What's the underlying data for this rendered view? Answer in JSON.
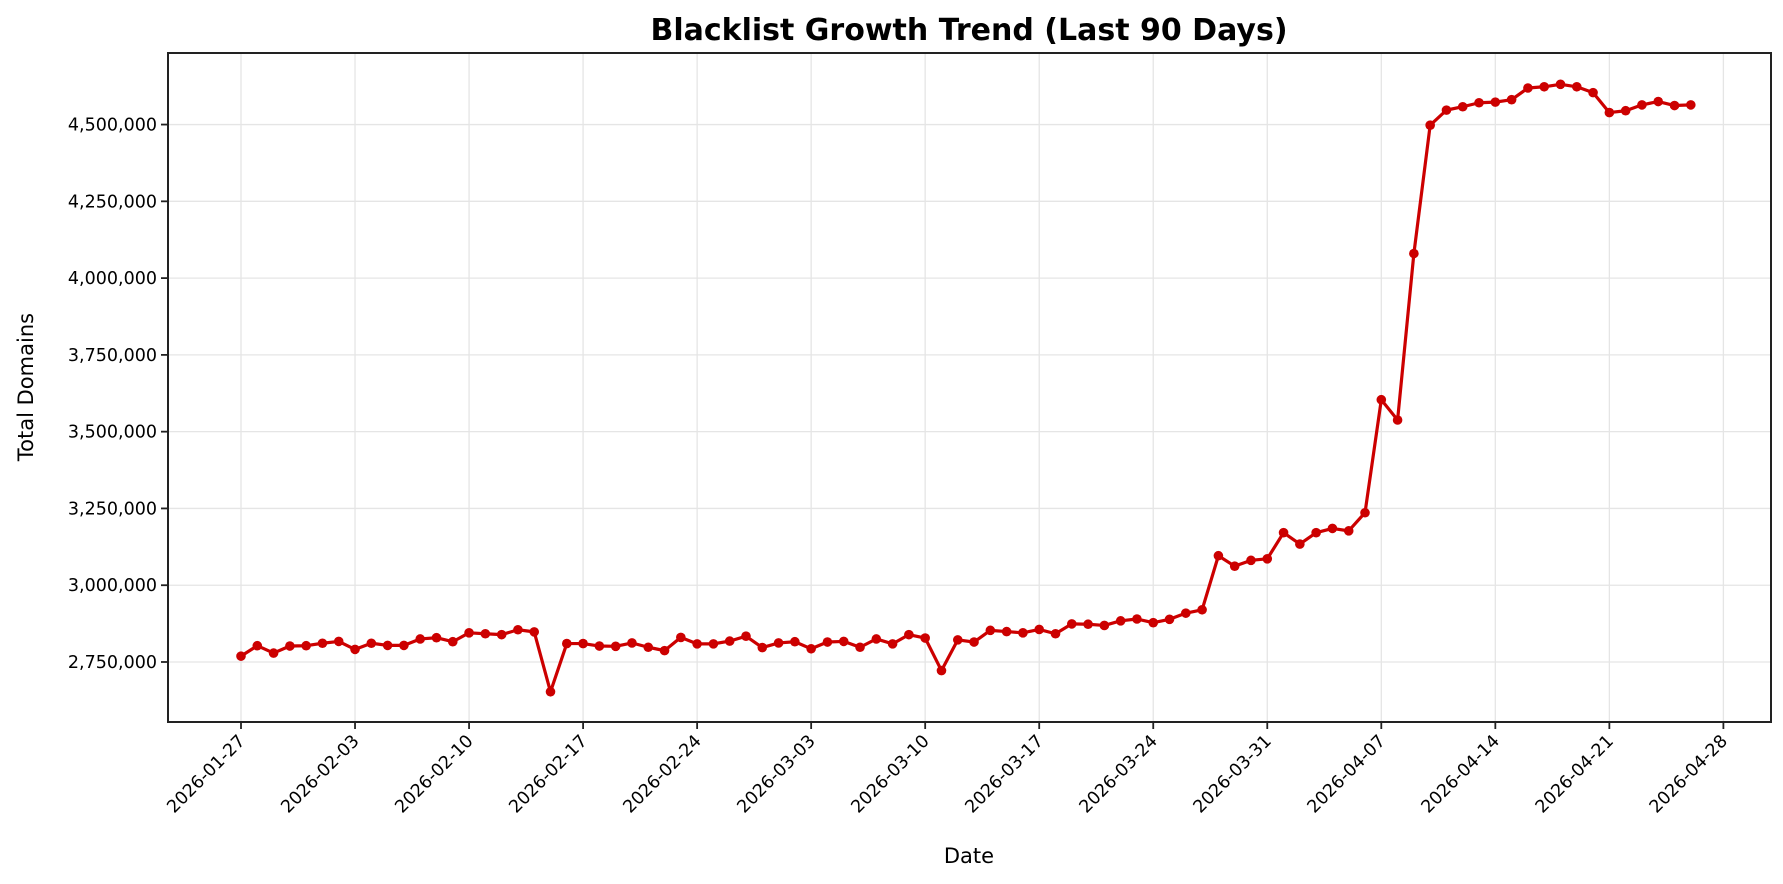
{
  "chart_data": {
    "type": "line",
    "title": "Blacklist Growth Trend (Last 90 Days)",
    "xlabel": "Date",
    "ylabel": "Total Domains",
    "grid": true,
    "legend": null,
    "line_color": "#cc0000",
    "marker": "circle",
    "ylim": [
      2554600,
      4733000
    ],
    "xlim": [
      "2026-01-22",
      "2026-04-30"
    ],
    "y_ticks": [
      2750000,
      3000000,
      3250000,
      3500000,
      3750000,
      4000000,
      4250000,
      4500000
    ],
    "y_tick_labels": [
      "2,750,000",
      "3,000,000",
      "3,250,000",
      "3,500,000",
      "3,750,000",
      "4,000,000",
      "4,250,000",
      "4,500,000"
    ],
    "x_tick_labels": [
      "2026-01-27",
      "2026-02-03",
      "2026-02-10",
      "2026-02-17",
      "2026-02-24",
      "2026-03-03",
      "2026-03-10",
      "2026-03-17",
      "2026-03-24",
      "2026-03-31",
      "2026-04-07",
      "2026-04-14",
      "2026-04-21",
      "2026-04-28"
    ],
    "x": [
      "2026-01-27",
      "2026-01-28",
      "2026-01-29",
      "2026-01-30",
      "2026-01-31",
      "2026-02-01",
      "2026-02-02",
      "2026-02-03",
      "2026-02-04",
      "2026-02-05",
      "2026-02-06",
      "2026-02-07",
      "2026-02-08",
      "2026-02-09",
      "2026-02-10",
      "2026-02-11",
      "2026-02-12",
      "2026-02-13",
      "2026-02-14",
      "2026-02-15",
      "2026-02-16",
      "2026-02-17",
      "2026-02-18",
      "2026-02-19",
      "2026-02-20",
      "2026-02-21",
      "2026-02-22",
      "2026-02-23",
      "2026-02-24",
      "2026-02-25",
      "2026-02-26",
      "2026-02-27",
      "2026-02-28",
      "2026-03-01",
      "2026-03-02",
      "2026-03-03",
      "2026-03-04",
      "2026-03-05",
      "2026-03-06",
      "2026-03-07",
      "2026-03-08",
      "2026-03-09",
      "2026-03-10",
      "2026-03-11",
      "2026-03-12",
      "2026-03-13",
      "2026-03-14",
      "2026-03-15",
      "2026-03-16",
      "2026-03-17",
      "2026-03-18",
      "2026-03-19",
      "2026-03-20",
      "2026-03-21",
      "2026-03-22",
      "2026-03-23",
      "2026-03-24",
      "2026-03-25",
      "2026-03-26",
      "2026-03-27",
      "2026-03-28",
      "2026-03-29",
      "2026-03-30",
      "2026-03-31",
      "2026-04-01",
      "2026-04-02",
      "2026-04-03",
      "2026-04-04",
      "2026-04-05",
      "2026-04-06",
      "2026-04-07",
      "2026-04-08",
      "2026-04-09",
      "2026-04-10",
      "2026-04-11",
      "2026-04-12",
      "2026-04-13",
      "2026-04-14",
      "2026-04-15",
      "2026-04-16",
      "2026-04-17",
      "2026-04-18",
      "2026-04-19",
      "2026-04-20",
      "2026-04-21",
      "2026-04-22",
      "2026-04-23",
      "2026-04-24",
      "2026-04-25",
      "2026-04-26"
    ],
    "series": [
      {
        "name": "Total Domains",
        "values": [
          2769000,
          2803000,
          2779000,
          2802000,
          2803000,
          2811000,
          2817000,
          2791000,
          2811000,
          2804000,
          2804000,
          2825000,
          2829000,
          2816000,
          2845000,
          2842000,
          2839000,
          2855000,
          2848000,
          2653000,
          2810000,
          2810000,
          2802000,
          2801000,
          2812000,
          2798000,
          2787000,
          2830000,
          2809000,
          2809000,
          2818000,
          2834000,
          2797000,
          2812000,
          2816000,
          2793000,
          2815000,
          2817000,
          2798000,
          2825000,
          2809000,
          2839000,
          2828000,
          2722000,
          2822000,
          2815000,
          2853000,
          2849000,
          2845000,
          2856000,
          2842000,
          2874000,
          2873000,
          2869000,
          2884000,
          2890000,
          2878000,
          2889000,
          2909000,
          2920000,
          3096000,
          3062000,
          3081000,
          3086000,
          3171000,
          3134000,
          3171000,
          3185000,
          3177000,
          3236000,
          3604000,
          3538000,
          4080000,
          4498000,
          4547000,
          4558000,
          4571000,
          4573000,
          4581000,
          4619000,
          4623000,
          4631000,
          4623000,
          4604000,
          4539000,
          4545000,
          4564000,
          4575000,
          4562000,
          4564000
        ]
      }
    ]
  }
}
